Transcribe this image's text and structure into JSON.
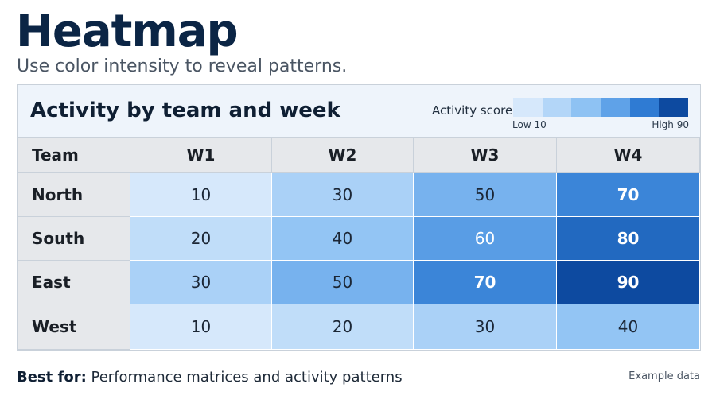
{
  "page": {
    "title": "Heatmap",
    "subtitle": "Use color intensity to reveal patterns."
  },
  "chart_data": {
    "type": "heatmap",
    "title": "Activity by team and week",
    "row_header": "Team",
    "columns": [
      "W1",
      "W2",
      "W3",
      "W4"
    ],
    "rows": [
      "North",
      "South",
      "East",
      "West"
    ],
    "values": [
      [
        10,
        30,
        50,
        70
      ],
      [
        20,
        40,
        60,
        80
      ],
      [
        30,
        50,
        70,
        90
      ],
      [
        10,
        20,
        30,
        40
      ]
    ],
    "legend": {
      "label": "Activity score",
      "low_label": "Low 10",
      "high_label": "High 90",
      "min": 10,
      "max": 90,
      "placement": "top-right",
      "colors": [
        "#d6e8fb",
        "#b3d6f8",
        "#8ec2f3",
        "#5fa2e8",
        "#2f7bd3",
        "#0d4aa0"
      ]
    }
  },
  "footer": {
    "best_for_label": "Best for:",
    "best_for_text": " Performance matrices and activity patterns",
    "note": "Example data"
  }
}
